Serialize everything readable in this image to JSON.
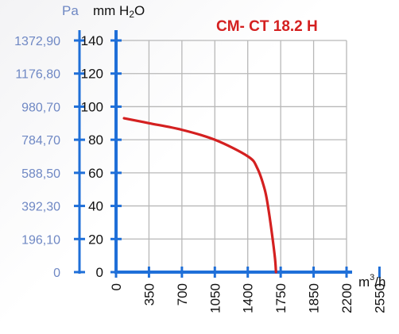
{
  "chart_data": {
    "type": "line",
    "title": "CM- CT 18.2 H",
    "y_units": {
      "left": "Pa",
      "right_prefix": "mm H",
      "right_sub": "2",
      "right_suffix": "O"
    },
    "x_unit": {
      "base": "m",
      "sup": "3",
      "suffix": "/h"
    },
    "x_ticks": [
      "0",
      "350",
      "700",
      "1050",
      "1400",
      "1750",
      "1850",
      "2200",
      "2550"
    ],
    "y_ticks_pa": [
      "0",
      "196,10",
      "392,30",
      "588,50",
      "784,70",
      "980,70",
      "1176,80",
      "1372,90"
    ],
    "y_ticks_mm": [
      "0",
      "20",
      "40",
      "60",
      "80",
      "100",
      "120",
      "140"
    ],
    "ylim": [
      0,
      140
    ],
    "grid": true,
    "colors": {
      "curve": "#d42020",
      "axis": "#1f6fd8",
      "grid": "#b8b8b8",
      "pa_text": "#6f88c4"
    },
    "series": [
      {
        "x": [
          85,
          350,
          700,
          1050,
          1400,
          1500,
          1580,
          1620,
          1660,
          1690,
          1700
        ],
        "y": [
          93,
          90,
          86,
          80,
          70,
          63,
          50,
          38,
          22,
          8,
          0
        ]
      }
    ]
  }
}
